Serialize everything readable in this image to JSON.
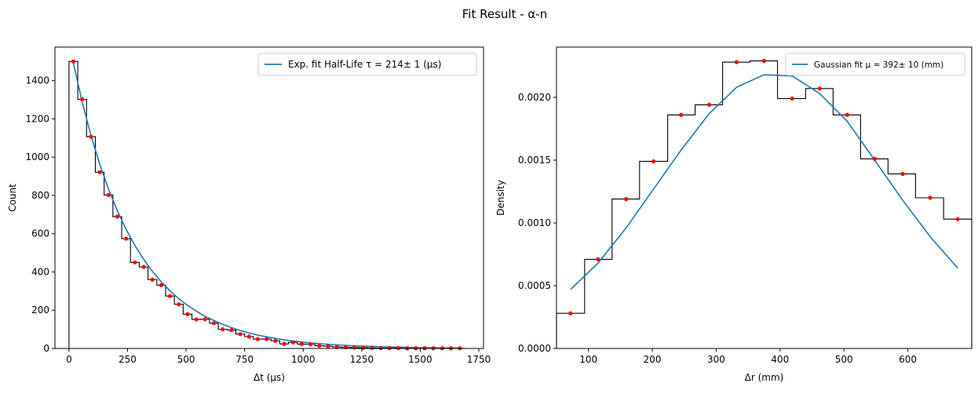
{
  "suptitle": "Fit Result - α-n",
  "chart_data": [
    {
      "type": "line",
      "xlabel": "Δt (μs)",
      "ylabel": "Count",
      "xlim": [
        -60,
        1770
      ],
      "ylim": [
        0,
        1575
      ],
      "xticks": [
        0,
        250,
        500,
        750,
        1000,
        1250,
        1500,
        1750
      ],
      "xtick_labels": [
        "0",
        "250",
        "500",
        "750",
        "1000",
        "1250",
        "1500",
        "1750"
      ],
      "yticks": [
        0,
        200,
        400,
        600,
        800,
        1000,
        1200,
        1400
      ],
      "ytick_labels": [
        "0",
        "200",
        "400",
        "600",
        "800",
        "1000",
        "1200",
        "1400"
      ],
      "legend": "top-right",
      "legend_label": "Exp. fit Half-Life τ = 214± 1 (μs)",
      "grid": false,
      "histogram": {
        "edges": [
          0,
          37.5,
          75,
          112.5,
          150,
          187.5,
          225,
          262.5,
          300,
          337.5,
          375,
          412.5,
          450,
          487.5,
          525,
          562.5,
          600,
          637.5,
          675,
          712.5,
          750,
          787.5,
          825,
          862.5,
          900,
          937.5,
          975,
          1012.5,
          1050,
          1087.5,
          1125,
          1162.5,
          1200,
          1237.5,
          1275,
          1312.5,
          1350,
          1387.5,
          1425,
          1462.5,
          1500,
          1537.5,
          1575,
          1612.5,
          1650,
          1687.5
        ],
        "counts": [
          1500,
          1302,
          1107,
          921,
          802,
          689,
          574,
          450,
          426,
          360,
          331,
          274,
          231,
          179,
          152,
          153,
          132,
          100,
          96,
          75,
          62,
          49,
          49,
          40,
          24,
          32,
          23,
          22,
          14,
          12,
          8,
          6,
          5,
          4,
          3,
          2,
          2,
          2,
          1,
          1,
          1,
          1,
          1,
          1,
          1
        ]
      },
      "points": {
        "x": [
          18.75,
          56.25,
          93.75,
          131.25,
          168.75,
          206.25,
          243.75,
          281.25,
          318.75,
          356.25,
          393.75,
          431.25,
          468.75,
          506.25,
          543.75,
          581.25,
          618.75,
          656.25,
          693.75,
          731.25,
          768.75,
          806.25,
          843.75,
          881.25,
          918.75,
          956.25,
          993.75,
          1031.25,
          1068.75,
          1106.25,
          1143.75,
          1181.25,
          1218.75,
          1256.25,
          1293.75,
          1331.25,
          1368.75,
          1406.25,
          1443.75,
          1481.25,
          1518.75,
          1556.25,
          1593.75,
          1631.25,
          1668.75
        ],
        "y": [
          1500,
          1302,
          1107,
          921,
          802,
          689,
          574,
          450,
          426,
          360,
          331,
          274,
          231,
          179,
          152,
          153,
          132,
          100,
          96,
          75,
          62,
          49,
          49,
          40,
          24,
          32,
          23,
          22,
          14,
          12,
          8,
          6,
          5,
          4,
          3,
          2,
          2,
          2,
          1,
          1,
          1,
          1,
          1,
          1,
          1
        ]
      },
      "series": [
        {
          "name": "Exp. fit Half-Life τ = 214± 1 (μs)",
          "color": "#1f77b4",
          "x": [
            18.75,
            56.25,
            93.75,
            131.25,
            168.75,
            206.25,
            243.75,
            281.25,
            318.75,
            356.25,
            393.75,
            431.25,
            468.75,
            506.25,
            543.75,
            581.25,
            618.75,
            656.25,
            693.75,
            731.25,
            768.75,
            806.25,
            843.75,
            881.25,
            918.75,
            956.25,
            993.75,
            1031.25,
            1068.75,
            1106.25,
            1143.75,
            1181.25,
            1218.75,
            1256.25,
            1293.75,
            1331.25,
            1368.75,
            1406.25,
            1443.75,
            1481.25,
            1518.75,
            1556.25,
            1593.75,
            1631.25,
            1668.75
          ],
          "y": [
            1490,
            1288,
            1114,
            963,
            833,
            720,
            623,
            539,
            466,
            403,
            348,
            301,
            260,
            225,
            195,
            168,
            146,
            126,
            109,
            94,
            81,
            70,
            61,
            53,
            45,
            39,
            34,
            29,
            25,
            22,
            19,
            16,
            14,
            12,
            11,
            9,
            8,
            7,
            6,
            5,
            4,
            4,
            3,
            3,
            3
          ]
        }
      ]
    },
    {
      "type": "line",
      "xlabel": "Δr (mm)",
      "ylabel": "Density",
      "xlim": [
        50,
        700
      ],
      "ylim": [
        0,
        0.0024
      ],
      "xticks": [
        100,
        200,
        300,
        400,
        500,
        600
      ],
      "xtick_labels": [
        "100",
        "200",
        "300",
        "400",
        "500",
        "600"
      ],
      "yticks": [
        0,
        0.0005,
        0.001,
        0.0015,
        0.002
      ],
      "ytick_labels": [
        "0.0000",
        "0.0005",
        "0.0010",
        "0.0015",
        "0.0020"
      ],
      "legend": "top-right",
      "legend_label": "Gaussian fit μ = 392± 10 (mm)",
      "grid": false,
      "histogram": {
        "edges": [
          50,
          94,
          137,
          180,
          224,
          267,
          310,
          353,
          396,
          440,
          483,
          526,
          569,
          612,
          656,
          700
        ],
        "counts": [
          0.00028,
          0.00071,
          0.00119,
          0.00149,
          0.00186,
          0.00194,
          0.00228,
          0.00229,
          0.00199,
          0.00207,
          0.00186,
          0.00151,
          0.00139,
          0.0012,
          0.00103
        ]
      },
      "points": {
        "x": [
          72,
          115,
          159,
          202,
          245,
          289,
          332,
          375,
          419,
          462,
          505,
          548,
          592,
          635,
          678
        ],
        "y": [
          0.00028,
          0.00071,
          0.00119,
          0.00149,
          0.00186,
          0.00194,
          0.00228,
          0.00229,
          0.00199,
          0.00207,
          0.00186,
          0.00151,
          0.00139,
          0.0012,
          0.00103
        ]
      },
      "series": [
        {
          "name": "Gaussian fit μ = 392± 10 (mm)",
          "color": "#1f77b4",
          "x": [
            72,
            115,
            159,
            202,
            245,
            289,
            332,
            375,
            419,
            462,
            505,
            548,
            592,
            635,
            678
          ],
          "y": [
            0.00047,
            0.00068,
            0.00096,
            0.00127,
            0.00158,
            0.00187,
            0.00208,
            0.00218,
            0.00217,
            0.00203,
            0.00181,
            0.0015,
            0.00118,
            0.00089,
            0.00064
          ]
        }
      ]
    }
  ]
}
